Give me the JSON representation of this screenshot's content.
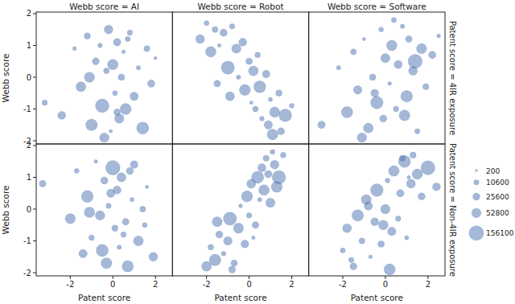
{
  "chart_data": {
    "type": "scatter",
    "x_label": "Patent score",
    "y_label": "Webb score",
    "columns": [
      "Webb score = AI",
      "Webb score = Robot",
      "Webb score = Software"
    ],
    "color": "#4c72b0",
    "xlim": [
      -3.6,
      2.8
    ],
    "xticks": [
      -2,
      0,
      2
    ],
    "ylim": [
      -2.1,
      2.05
    ],
    "yticks": [
      -2,
      -1,
      0,
      1,
      2
    ],
    "size_legend": [
      200,
      10600,
      25600,
      52800,
      156100
    ],
    "rows": [
      {
        "title": "Patent score = 4IR exposure",
        "panels": [
          {
            "x": [
              -3.2,
              -2.4,
              -1.8,
              -1.5,
              -1.2,
              -1.0,
              -0.8,
              -0.6,
              -0.5,
              -0.3,
              -0.2,
              -0.1,
              0.0,
              0.1,
              0.2,
              0.3,
              0.4,
              0.5,
              0.6,
              0.8,
              1.0,
              1.2,
              1.4,
              1.6,
              1.8,
              2.0,
              -0.4,
              0.2,
              -1.1,
              0.7
            ],
            "y": [
              -0.8,
              -1.2,
              0.9,
              -0.3,
              1.3,
              -1.5,
              0.5,
              1.0,
              -0.9,
              0.2,
              1.5,
              -1.7,
              0.4,
              -0.5,
              1.1,
              -1.3,
              0.0,
              0.8,
              -1.0,
              1.4,
              -0.6,
              0.3,
              -1.6,
              0.9,
              -0.2,
              0.6,
              -1.9,
              -1.1,
              0.0,
              1.2
            ],
            "size": [
              12000,
              35000,
              4000,
              60000,
              18000,
              90000,
              25000,
              7000,
              130000,
              15000,
              45000,
              2000,
              70000,
              9000,
              30000,
              52000,
              20000,
              3000,
              80000,
              11000,
              40000,
              6000,
              100000,
              16000,
              28000,
              1500,
              55000,
              22000,
              65000,
              10000
            ]
          },
          {
            "x": [
              -2.3,
              -2.0,
              -1.8,
              -1.6,
              -1.4,
              -1.2,
              -1.0,
              -0.8,
              -0.6,
              -0.5,
              -0.3,
              -0.2,
              0.0,
              0.1,
              0.2,
              0.3,
              0.5,
              0.6,
              0.8,
              0.9,
              1.0,
              1.2,
              1.4,
              1.5,
              1.7,
              2.0,
              -0.9,
              0.4,
              -1.5,
              1.1
            ],
            "y": [
              1.2,
              1.7,
              0.8,
              1.5,
              1.0,
              1.4,
              0.3,
              1.6,
              0.9,
              0.0,
              1.1,
              -0.4,
              0.5,
              -0.8,
              0.2,
              -1.0,
              -0.3,
              -1.3,
              0.1,
              -1.5,
              -0.7,
              -1.1,
              -0.5,
              -1.7,
              -1.2,
              -0.9,
              -0.6,
              0.7,
              -0.2,
              -1.8
            ],
            "size": [
              45000,
              9000,
              70000,
              16000,
              3000,
              28000,
              120000,
              11000,
              52000,
              6000,
              35000,
              80000,
              20000,
              2500,
              60000,
              14000,
              95000,
              7000,
              30000,
              40000,
              5000,
              65000,
              18000,
              25000,
              110000,
              8000,
              48000,
              13000,
              22000,
              75000
            ]
          },
          {
            "x": [
              -3.0,
              -2.2,
              -1.8,
              -1.5,
              -1.3,
              -1.0,
              -0.8,
              -0.6,
              -0.4,
              -0.2,
              -0.1,
              0.0,
              0.2,
              0.3,
              0.5,
              0.6,
              0.8,
              1.0,
              1.1,
              1.3,
              1.5,
              1.7,
              1.9,
              2.2,
              2.5,
              -1.1,
              0.4,
              0.9,
              -0.5,
              1.4
            ],
            "y": [
              -1.5,
              0.3,
              -1.1,
              0.8,
              -0.4,
              1.2,
              -1.6,
              0.0,
              -0.8,
              1.5,
              -1.3,
              0.6,
              -0.2,
              1.0,
              -1.0,
              0.4,
              1.6,
              -0.6,
              1.2,
              0.2,
              -1.7,
              0.9,
              -0.3,
              0.7,
              1.3,
              -1.9,
              1.8,
              -1.2,
              -0.5,
              0.5
            ],
            "size": [
              30000,
              5000,
              85000,
              14000,
              42000,
              2000,
              60000,
              19000,
              105000,
              8000,
              25000,
              50000,
              3500,
              70000,
              12000,
              38000,
              6000,
              90000,
              22000,
              45000,
              10000,
              65000,
              17000,
              28000,
              4000,
              55000,
              9500,
              75000,
              33000,
              140000
            ]
          }
        ]
      },
      {
        "title": "Patent score = Non-4IR exposure",
        "panels": [
          {
            "x": [
              -3.3,
              -2.0,
              -1.7,
              -1.4,
              -1.2,
              -1.0,
              -0.8,
              -0.6,
              -0.4,
              -0.3,
              -0.2,
              0.0,
              0.1,
              0.2,
              0.3,
              0.4,
              0.6,
              0.7,
              0.9,
              1.0,
              1.2,
              1.4,
              1.6,
              1.9,
              -0.5,
              0.5,
              -1.1,
              0.8,
              -0.1,
              1.5
            ],
            "y": [
              0.8,
              -0.3,
              1.2,
              -1.4,
              0.4,
              -0.9,
              1.5,
              -0.2,
              0.9,
              -1.7,
              0.1,
              1.3,
              -0.6,
              0.6,
              -1.2,
              1.0,
              -0.4,
              -1.8,
              0.3,
              1.4,
              -1.0,
              0.0,
              0.7,
              -1.5,
              -1.3,
              -0.8,
              -0.1,
              1.2,
              0.5,
              -0.5
            ],
            "size": [
              20000,
              65000,
              8000,
              40000,
              95000,
              13000,
              3000,
              55000,
              27000,
              75000,
              10000,
              150000,
              18000,
              36000,
              6000,
              48000,
              23000,
              85000,
              4500,
              32000,
              60000,
              15000,
              2000,
              44000,
              100000,
              12000,
              70000,
              26000,
              38000,
              9000
            ]
          },
          {
            "x": [
              -2.0,
              -1.8,
              -1.6,
              -1.4,
              -1.2,
              -1.0,
              -0.9,
              -0.7,
              -0.5,
              -0.4,
              -0.2,
              -0.1,
              0.0,
              0.1,
              0.3,
              0.4,
              0.5,
              0.6,
              0.7,
              0.8,
              0.9,
              1.0,
              1.1,
              1.2,
              1.4,
              1.6,
              -1.5,
              -0.8,
              0.2,
              1.3
            ],
            "y": [
              -1.8,
              -1.2,
              -1.6,
              -0.8,
              -1.4,
              -1.0,
              -0.3,
              -1.7,
              -0.6,
              0.1,
              -1.1,
              0.4,
              -0.2,
              0.8,
              -0.5,
              1.0,
              0.3,
              1.3,
              0.6,
              1.6,
              1.1,
              0.2,
              1.8,
              1.4,
              1.0,
              1.7,
              -0.4,
              -1.9,
              -0.9,
              0.7
            ],
            "size": [
              58000,
              14000,
              90000,
              26000,
              7000,
              42000,
              120000,
              19000,
              65000,
              4000,
              33000,
              80000,
              11000,
              48000,
              22000,
              100000,
              5500,
              37000,
              70000,
              16000,
              29000,
              52000,
              8500,
              44000,
              125000,
              13000,
              61000,
              24000,
              3000,
              78000
            ]
          },
          {
            "x": [
              -2.0,
              -1.8,
              -1.5,
              -1.3,
              -1.1,
              -0.9,
              -0.7,
              -0.5,
              -0.4,
              -0.2,
              0.0,
              0.1,
              0.3,
              0.4,
              0.6,
              0.7,
              0.9,
              1.0,
              1.2,
              1.3,
              1.5,
              1.7,
              2.0,
              -1.6,
              -0.8,
              0.2,
              0.8,
              -0.1,
              1.1,
              2.4
            ],
            "y": [
              -1.3,
              -0.6,
              -1.8,
              -0.2,
              -1.0,
              0.3,
              -1.5,
              -0.4,
              0.6,
              -1.1,
              0.0,
              0.9,
              -0.7,
              1.2,
              -0.3,
              0.5,
              1.5,
              -0.9,
              0.8,
              1.7,
              1.1,
              0.4,
              1.3,
              -1.6,
              0.1,
              -1.9,
              1.6,
              -0.5,
              1.0,
              0.7
            ],
            "size": [
              9000,
              47000,
              24000,
              88000,
              15000,
              62000,
              3500,
              35000,
              110000,
              20000,
              54000,
              7500,
              41000,
              72000,
              12000,
              30000,
              95000,
              5000,
              46000,
              18000,
              68000,
              26000,
              140000,
              10500,
              39000,
              82000,
              16500,
              57000,
              2500,
              34000
            ]
          }
        ]
      }
    ]
  }
}
